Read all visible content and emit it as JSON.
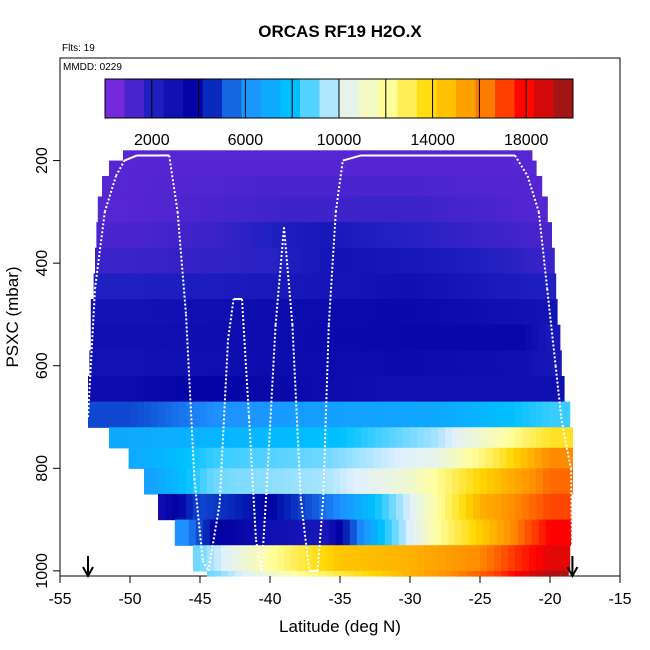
{
  "chart_data": {
    "type": "heatmap",
    "title": "ORCAS RF19 H2O.X",
    "annotations": {
      "flights": "Flts: 19",
      "date": "MMDD: 0229"
    },
    "xlabel": "Latitude (deg N)",
    "ylabel": "PSXC (mbar)",
    "xlim": [
      -55,
      -15
    ],
    "ylim": [
      1010,
      0
    ],
    "x_ticks": [
      -55,
      -50,
      -45,
      -40,
      -35,
      -30,
      -25,
      -20,
      -15
    ],
    "x_tick_labels": [
      "-55",
      "-50",
      "-45",
      "-40",
      "-35",
      "-30",
      "-25",
      "-20",
      "-15"
    ],
    "y_ticks": [
      200,
      400,
      600,
      800,
      1000
    ],
    "y_tick_labels": [
      "200",
      "400",
      "600",
      "800",
      "1000"
    ],
    "colorbar": {
      "range": [
        0,
        20000
      ],
      "ticks": [
        2000,
        6000,
        10000,
        14000,
        18000
      ],
      "tick_labels": [
        "2000",
        "6000",
        "10000",
        "14000",
        "18000"
      ],
      "colors": [
        "#8a2be2",
        "#2020c0",
        "#0000a0",
        "#1e90ff",
        "#00c0ff",
        "#e0f0ff",
        "#ffffa0",
        "#ffd700",
        "#ff8c00",
        "#ff0000",
        "#8b1a1a"
      ]
    },
    "markers": [
      {
        "lat": -53,
        "symbol": "arrow-down"
      },
      {
        "lat": -18.4,
        "symbol": "arrow-down"
      }
    ],
    "layers": [
      {
        "p_top": 180,
        "p_bot": 200,
        "lat_min": -50.5,
        "lat_max": -21.3,
        "lat_values": [
          -50,
          -20
        ],
        "values": [
          1000,
          1000
        ]
      },
      {
        "p_top": 200,
        "p_bot": 230,
        "lat_min": -51.5,
        "lat_max": -21.0,
        "lat_values": [
          -50,
          -20
        ],
        "values": [
          1000,
          1000
        ]
      },
      {
        "p_top": 230,
        "p_bot": 270,
        "lat_min": -52.0,
        "lat_max": -20.6,
        "lat_values": [
          -50,
          -40,
          -30,
          -20
        ],
        "values": [
          1000,
          1200,
          1200,
          1000
        ]
      },
      {
        "p_top": 270,
        "p_bot": 320,
        "lat_min": -52.3,
        "lat_max": -20.2,
        "lat_values": [
          -50,
          -40,
          -30,
          -20
        ],
        "values": [
          1000,
          1400,
          1500,
          1000
        ]
      },
      {
        "p_top": 320,
        "p_bot": 370,
        "lat_min": -52.4,
        "lat_max": -19.9,
        "lat_values": [
          -50,
          -44,
          -36,
          -32,
          -20
        ],
        "values": [
          1200,
          1500,
          2500,
          2000,
          1200
        ]
      },
      {
        "p_top": 370,
        "p_bot": 420,
        "lat_min": -52.5,
        "lat_max": -19.7,
        "lat_values": [
          -50,
          -40,
          -35,
          -28,
          -20
        ],
        "values": [
          1500,
          1800,
          2800,
          2400,
          1500
        ]
      },
      {
        "p_top": 420,
        "p_bot": 470,
        "lat_min": -52.6,
        "lat_max": -19.6,
        "lat_values": [
          -50,
          -38,
          -30,
          -20
        ],
        "values": [
          2000,
          2500,
          3000,
          2000
        ]
      },
      {
        "p_top": 470,
        "p_bot": 520,
        "lat_min": -52.8,
        "lat_max": -19.5,
        "lat_values": [
          -50,
          -40,
          -30,
          -20
        ],
        "values": [
          2800,
          3200,
          3400,
          2800
        ]
      },
      {
        "p_top": 520,
        "p_bot": 570,
        "lat_min": -52.8,
        "lat_max": -19.3,
        "lat_values": [
          -50,
          -40,
          -30,
          -22,
          -20
        ],
        "values": [
          3000,
          3200,
          3500,
          3500,
          2500
        ]
      },
      {
        "p_top": 570,
        "p_bot": 620,
        "lat_min": -52.9,
        "lat_max": -19.2,
        "lat_values": [
          -50,
          -40,
          -30,
          -22,
          -20
        ],
        "values": [
          2800,
          3200,
          3300,
          3000,
          2500
        ]
      },
      {
        "p_top": 620,
        "p_bot": 670,
        "lat_min": -53.0,
        "lat_max": -19.0,
        "lat_values": [
          -50,
          -45,
          -40,
          -30,
          -20
        ],
        "values": [
          3200,
          3800,
          3400,
          3000,
          3000
        ]
      },
      {
        "p_top": 670,
        "p_bot": 720,
        "lat_min": -53.0,
        "lat_max": -18.6,
        "lat_values": [
          -50,
          -44,
          -38,
          -28,
          -20
        ],
        "values": [
          5000,
          6000,
          6500,
          7000,
          8500
        ]
      },
      {
        "p_top": 720,
        "p_bot": 760,
        "lat_min": -51.5,
        "lat_max": -18.4,
        "lat_values": [
          -50,
          -44,
          -35,
          -28,
          -20
        ],
        "values": [
          7000,
          7500,
          8000,
          9500,
          13500
        ]
      },
      {
        "p_top": 760,
        "p_bot": 800,
        "lat_min": -50.1,
        "lat_max": -18.4,
        "lat_values": [
          -50,
          -44,
          -36,
          -28,
          -24,
          -20
        ],
        "values": [
          7000,
          8500,
          9000,
          10500,
          13000,
          16000
        ]
      },
      {
        "p_top": 800,
        "p_bot": 850,
        "lat_min": -49.0,
        "lat_max": -18.4,
        "lat_values": [
          -49,
          -44,
          -36,
          -30,
          -25,
          -20
        ],
        "values": [
          6500,
          9000,
          9500,
          11000,
          14000,
          16500
        ]
      },
      {
        "p_top": 850,
        "p_bot": 900,
        "lat_min": -48.0,
        "lat_max": -18.5,
        "lat_values": [
          -48,
          -45,
          -40,
          -35,
          -30,
          -25,
          -20
        ],
        "values": [
          3000,
          5000,
          4000,
          6000,
          10000,
          15000,
          17000
        ]
      },
      {
        "p_top": 900,
        "p_bot": 950,
        "lat_min": -46.8,
        "lat_max": -18.5,
        "lat_values": [
          -46,
          -44,
          -40,
          -36,
          -32,
          -28,
          -24,
          -20
        ],
        "values": [
          6000,
          4000,
          3000,
          2500,
          8000,
          12000,
          15000,
          18000
        ]
      },
      {
        "p_top": 950,
        "p_bot": 1000,
        "lat_min": -45.5,
        "lat_max": -18.6,
        "lat_values": [
          -45,
          -40,
          -35,
          -30,
          -25,
          -20
        ],
        "values": [
          9000,
          12000,
          14500,
          15000,
          16000,
          18500
        ]
      },
      {
        "p_top": 1000,
        "p_bot": 1010,
        "lat_min": -44.5,
        "lat_max": -18.7,
        "lat_values": [
          -44,
          -38,
          -30,
          -24,
          -20
        ],
        "values": [
          9000,
          12000,
          15000,
          17000,
          19500
        ]
      }
    ],
    "flight_track": {
      "lat": [
        -53.0,
        -52.5,
        -51.8,
        -51.0,
        -50.4,
        -49.5,
        -48.0,
        -47.2,
        -46.6,
        -46.0,
        -45.4,
        -44.8,
        -44.4,
        -43.6,
        -43.0,
        -42.6,
        -42.0,
        -41.5,
        -41.0,
        -40.6,
        -40.2,
        -39.6,
        -39.0,
        -38.4,
        -37.8,
        -37.2,
        -36.6,
        -36.2,
        -35.8,
        -35.3,
        -34.8,
        -33.5,
        -30,
        -25,
        -22.5,
        -21.6,
        -20.8,
        -20.2,
        -19.6,
        -19.2,
        -18.8,
        -18.5,
        -18.4
      ],
      "p": [
        700,
        450,
        300,
        230,
        200,
        190,
        190,
        190,
        300,
        500,
        820,
        980,
        1000,
        870,
        550,
        470,
        470,
        700,
        940,
        1000,
        820,
        520,
        330,
        520,
        860,
        1000,
        1000,
        860,
        520,
        300,
        200,
        190,
        190,
        190,
        190,
        230,
        300,
        450,
        600,
        700,
        760,
        800,
        1000
      ]
    }
  }
}
